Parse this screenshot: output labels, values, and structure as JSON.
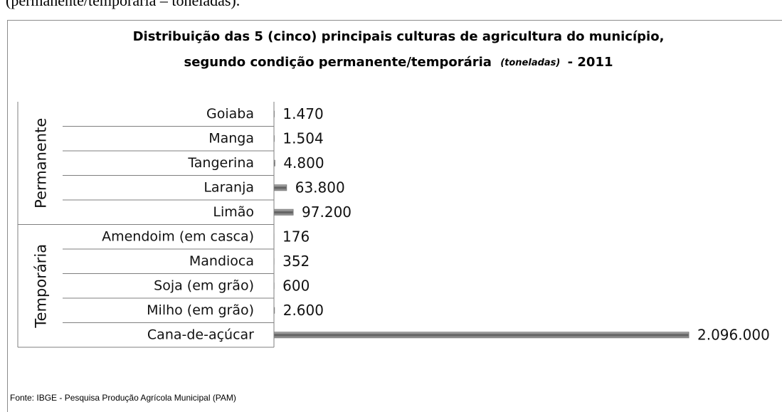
{
  "caption": "(permanente/temporária – toneladas).",
  "chart_data": {
    "type": "bar",
    "title_lines": [
      "Distribuição das 5 (cinco) principais culturas de agricultura do município,",
      "segundo condição permanente/temporária"
    ],
    "title_unit": "(toneladas)",
    "title_year": "- 2011",
    "color": "#7f7f7f",
    "groups": [
      {
        "name": "Permanente",
        "categories": [
          "Goiaba",
          "Manga",
          "Tangerina",
          "Laranja",
          "Limão"
        ],
        "values": [
          1470,
          1504,
          4800,
          63800,
          97200
        ],
        "value_labels": [
          "1.470",
          "1.504",
          "4.800",
          "63.800",
          "97.200"
        ]
      },
      {
        "name": "Temporária",
        "categories": [
          "Amendoim (em casca)",
          "Mandioca",
          "Soja (em grão)",
          "Milho (em grão)",
          "Cana-de-açúcar"
        ],
        "values": [
          176,
          352,
          600,
          2600,
          2096000
        ],
        "value_labels": [
          "176",
          "352",
          "600",
          "2.600",
          "2.096.000"
        ]
      }
    ],
    "source": "Fonte: IBGE - Pesquisa Produção Agrícola Municipal (PAM)"
  }
}
